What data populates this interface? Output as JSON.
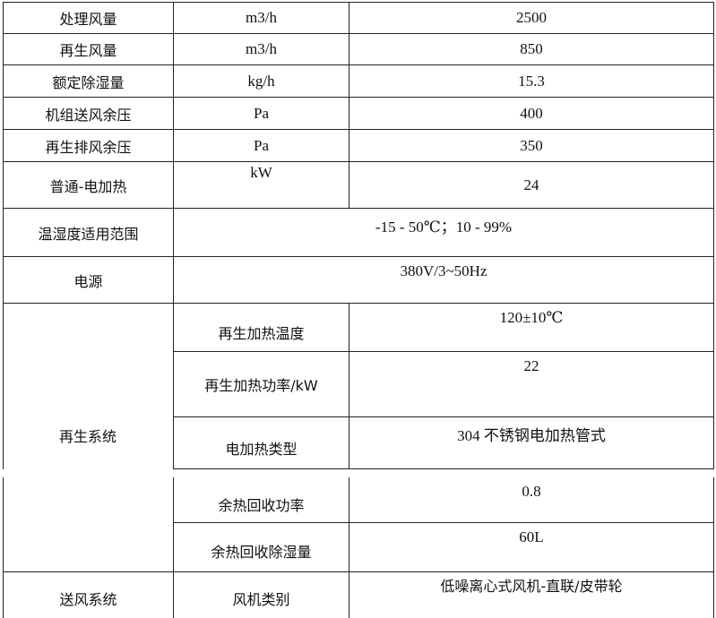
{
  "rows": [
    {
      "label": "处理风量",
      "unit": "m3/h",
      "value": "2500"
    },
    {
      "label": "再生风量",
      "unit": "m3/h",
      "value": "850"
    },
    {
      "label": "额定除湿量",
      "unit": "kg/h",
      "value": "15.3"
    },
    {
      "label": "机组送风余压",
      "unit": "Pa",
      "value": "400"
    },
    {
      "label": "再生排风余压",
      "unit": "Pa",
      "value": "350"
    },
    {
      "label": "普通-电加热",
      "unit": "kW",
      "value": "24"
    }
  ],
  "merged_rows": [
    {
      "label": "温湿度适用范围",
      "value": "-15 - 50℃；10 - 99%"
    },
    {
      "label": "电源",
      "value": "380V/3~50Hz"
    }
  ],
  "regen_system": {
    "label": "再生系统",
    "items": [
      {
        "label": "再生加热温度",
        "value": "120±10℃"
      },
      {
        "label": "再生加热功率/kW",
        "value": "22"
      },
      {
        "label": "电加热类型",
        "value": "304 不锈钢电加热管式"
      },
      {
        "label": "余热回收功率",
        "value": "0.8"
      },
      {
        "label": "余热回收除湿量",
        "value": "60L"
      }
    ]
  },
  "supply_system": {
    "label": "送风系统",
    "items": [
      {
        "label": "风机类别",
        "value": "低噪离心式风机-直联/皮带轮"
      }
    ]
  }
}
